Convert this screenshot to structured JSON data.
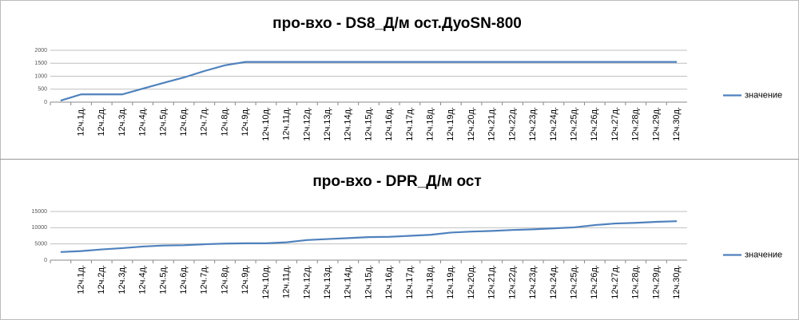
{
  "chart_data": [
    {
      "type": "line",
      "title": "про-вхо - DS8_Д/м ост.ДуоSN-800",
      "categories": [
        null,
        "12ч.1д.",
        "12ч.2д.",
        "12ч.3д.",
        "12ч.4д.",
        "12ч.5д.",
        "12ч.6д.",
        "12ч.7д.",
        "12ч.8д.",
        "12ч.9д.",
        "12ч.10д.",
        "12ч.11д.",
        "12ч.12д.",
        "12ч.13д.",
        "12ч.14д.",
        "12ч.15д.",
        "12ч.16д.",
        "12ч.17д.",
        "12ч.18д.",
        "12ч.19д.",
        "12ч.20д.",
        "12ч.21д.",
        "12ч.22д.",
        "12ч.23д.",
        "12ч.24д.",
        "12ч.25д.",
        "12ч.26д.",
        "12ч.27д.",
        "12ч.28д.",
        "12ч.29д.",
        "12ч.30д."
      ],
      "series": [
        {
          "name": "значение",
          "color": "#4f81bd",
          "values": [
            60,
            300,
            300,
            300,
            520,
            740,
            950,
            1200,
            1420,
            1550,
            1550,
            1550,
            1550,
            1550,
            1550,
            1550,
            1550,
            1550,
            1550,
            1550,
            1550,
            1550,
            1550,
            1550,
            1550,
            1550,
            1550,
            1550,
            1550,
            1550,
            1550
          ]
        }
      ],
      "ylim": [
        0,
        2000
      ],
      "yticks": [
        0,
        500,
        1000,
        1500,
        2000
      ],
      "grid": true,
      "legend": "right"
    },
    {
      "type": "line",
      "title": "про-вхо - DPR_Д/м ост",
      "categories": [
        null,
        "12ч.1д.",
        "12ч.2д.",
        "12ч.3д.",
        "12ч.4д.",
        "12ч.5д.",
        "12ч.6д.",
        "12ч.7д.",
        "12ч.8д.",
        "12ч.9д.",
        "12ч.10д.",
        "12ч.11д.",
        "12ч.12д.",
        "12ч.13д.",
        "12ч.14д.",
        "12ч.15д.",
        "12ч.16д.",
        "12ч.17д.",
        "12ч.18д.",
        "12ч.19д.",
        "12ч.20д.",
        "12ч.21д.",
        "12ч.22д.",
        "12ч.23д.",
        "12ч.24д.",
        "12ч.25д.",
        "12ч.26д.",
        "12ч.27д.",
        "12ч.28д.",
        "12ч.29д.",
        "12ч.30д."
      ],
      "series": [
        {
          "name": "значение",
          "color": "#4f81bd",
          "values": [
            2500,
            2800,
            3300,
            3700,
            4200,
            4500,
            4600,
            4900,
            5100,
            5200,
            5200,
            5500,
            6200,
            6500,
            6800,
            7100,
            7200,
            7500,
            7800,
            8500,
            8800,
            9000,
            9300,
            9500,
            9800,
            10100,
            10800,
            11300,
            11500,
            11800,
            12000
          ]
        }
      ],
      "ylim": [
        0,
        15000
      ],
      "yticks": [
        0,
        5000,
        10000,
        15000
      ],
      "grid": true,
      "legend": "right"
    }
  ]
}
